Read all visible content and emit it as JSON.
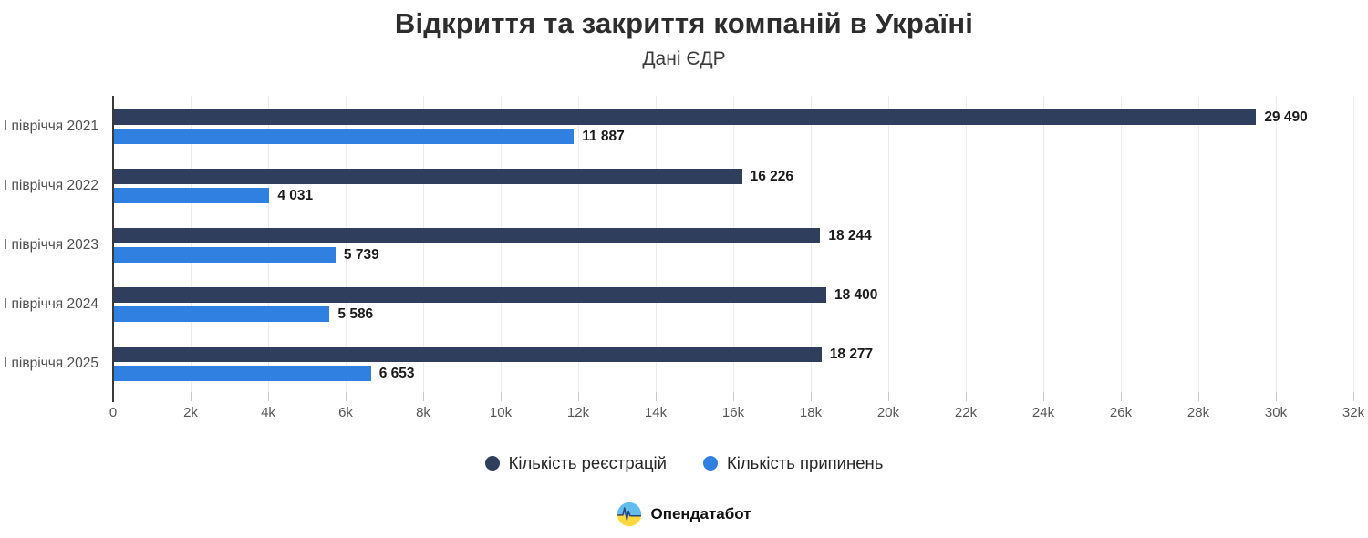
{
  "header": {
    "title": "Відкриття та закриття компаній в Україні",
    "subtitle": "Дані ЄДР"
  },
  "chart_data": {
    "type": "bar",
    "orientation": "horizontal",
    "title": "Відкриття та закриття компаній в Україні",
    "subtitle": "Дані ЄДР",
    "categories": [
      "І півріччя 2021",
      "І півріччя 2022",
      "І півріччя 2023",
      "І півріччя 2024",
      "І півріччя 2025"
    ],
    "series": [
      {
        "name": "Кількість реєстрацій",
        "color": "#2e3e5c",
        "values": [
          29490,
          16226,
          18244,
          18400,
          18277
        ],
        "labels": [
          "29 490",
          "16 226",
          "18 244",
          "18 400",
          "18 277"
        ]
      },
      {
        "name": "Кількість припинень",
        "color": "#2f80e0",
        "values": [
          11887,
          4031,
          5739,
          5586,
          6653
        ],
        "labels": [
          "11 887",
          "4 031",
          "5 739",
          "5 586",
          "6 653"
        ]
      }
    ],
    "xlim": [
      0,
      32000
    ],
    "x_ticks": [
      "0",
      "2k",
      "4k",
      "6k",
      "8k",
      "10k",
      "12k",
      "14k",
      "16k",
      "18k",
      "20k",
      "22k",
      "24k",
      "26k",
      "28k",
      "30k",
      "32k"
    ],
    "grid": true,
    "legend_position": "bottom"
  },
  "footer": {
    "brand": "Опендатабот"
  },
  "colors": {
    "registrations": "#2e3e5c",
    "terminations": "#2f80e0",
    "gridline": "#ededed",
    "axis": "#3a3a3a"
  }
}
